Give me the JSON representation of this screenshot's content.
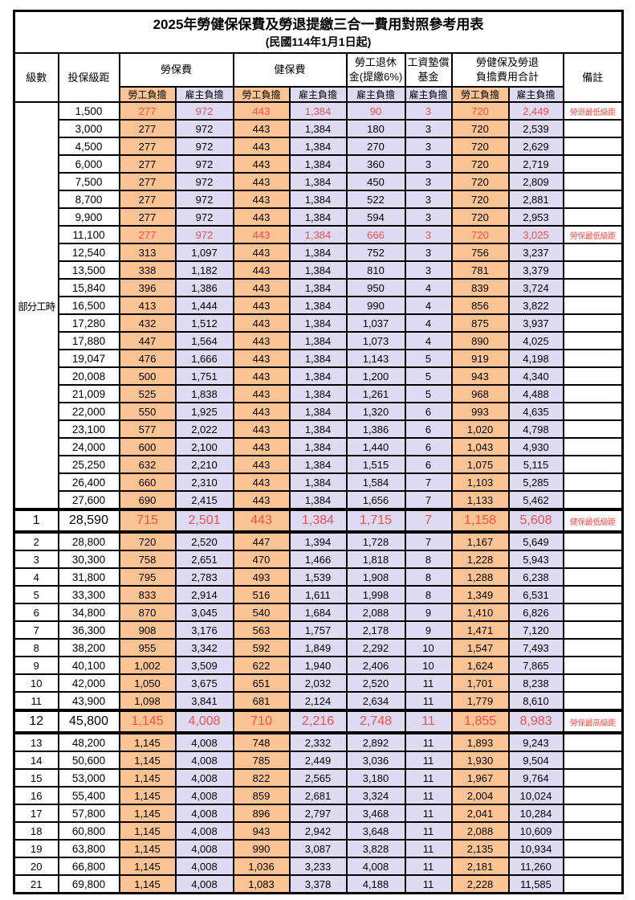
{
  "title": "2025年勞健保保費及勞退提繳三合一費用對照參考用表",
  "subtitle": "(民國114年1月1日起)",
  "columns": {
    "level": "級數",
    "bracket": "投保級距",
    "labor_insurance": "勞保費",
    "health_insurance": "健保費",
    "pension_line1": "勞工退休",
    "pension_line2": "金(提繳6%)",
    "wage_fund_line1": "工資墊償",
    "wage_fund_line2": "基金",
    "total_line1": "勞健保及勞退",
    "total_line2": "負擔費用合計",
    "note": "備註",
    "employee": "勞工負擔",
    "employer": "雇主負擔"
  },
  "colors": {
    "employee_fill": "#FAC394",
    "employer_fill": "#DDDAF2",
    "highlight_text": "#F0504C",
    "border": "#000000"
  },
  "part_time_label": "部分工時",
  "part_time_rowspan": 23,
  "rows": [
    {
      "bracket": "1,500",
      "fees": [
        "277",
        "972",
        "443",
        "1,384",
        "90",
        "3",
        "720",
        "2,449"
      ],
      "note": "勞退最低級距",
      "red": true
    },
    {
      "bracket": "3,000",
      "fees": [
        "277",
        "972",
        "443",
        "1,384",
        "180",
        "3",
        "720",
        "2,539"
      ]
    },
    {
      "bracket": "4,500",
      "fees": [
        "277",
        "972",
        "443",
        "1,384",
        "270",
        "3",
        "720",
        "2,629"
      ]
    },
    {
      "bracket": "6,000",
      "fees": [
        "277",
        "972",
        "443",
        "1,384",
        "360",
        "3",
        "720",
        "2,719"
      ]
    },
    {
      "bracket": "7,500",
      "fees": [
        "277",
        "972",
        "443",
        "1,384",
        "450",
        "3",
        "720",
        "2,809"
      ]
    },
    {
      "bracket": "8,700",
      "fees": [
        "277",
        "972",
        "443",
        "1,384",
        "522",
        "3",
        "720",
        "2,881"
      ]
    },
    {
      "bracket": "9,900",
      "fees": [
        "277",
        "972",
        "443",
        "1,384",
        "594",
        "3",
        "720",
        "2,953"
      ]
    },
    {
      "bracket": "11,100",
      "fees": [
        "277",
        "972",
        "443",
        "1,384",
        "666",
        "3",
        "720",
        "3,025"
      ],
      "note": "勞保最低級距",
      "red": true
    },
    {
      "bracket": "12,540",
      "fees": [
        "313",
        "1,097",
        "443",
        "1,384",
        "752",
        "3",
        "756",
        "3,237"
      ]
    },
    {
      "bracket": "13,500",
      "fees": [
        "338",
        "1,182",
        "443",
        "1,384",
        "810",
        "3",
        "781",
        "3,379"
      ]
    },
    {
      "bracket": "15,840",
      "fees": [
        "396",
        "1,386",
        "443",
        "1,384",
        "950",
        "4",
        "839",
        "3,724"
      ]
    },
    {
      "bracket": "16,500",
      "fees": [
        "413",
        "1,444",
        "443",
        "1,384",
        "990",
        "4",
        "856",
        "3,822"
      ]
    },
    {
      "bracket": "17,280",
      "fees": [
        "432",
        "1,512",
        "443",
        "1,384",
        "1,037",
        "4",
        "875",
        "3,937"
      ]
    },
    {
      "bracket": "17,880",
      "fees": [
        "447",
        "1,564",
        "443",
        "1,384",
        "1,073",
        "4",
        "890",
        "4,025"
      ]
    },
    {
      "bracket": "19,047",
      "fees": [
        "476",
        "1,666",
        "443",
        "1,384",
        "1,143",
        "5",
        "919",
        "4,198"
      ]
    },
    {
      "bracket": "20,008",
      "fees": [
        "500",
        "1,751",
        "443",
        "1,384",
        "1,200",
        "5",
        "943",
        "4,340"
      ]
    },
    {
      "bracket": "21,009",
      "fees": [
        "525",
        "1,838",
        "443",
        "1,384",
        "1,261",
        "5",
        "968",
        "4,488"
      ]
    },
    {
      "bracket": "22,000",
      "fees": [
        "550",
        "1,925",
        "443",
        "1,384",
        "1,320",
        "6",
        "993",
        "4,635"
      ]
    },
    {
      "bracket": "23,100",
      "fees": [
        "577",
        "2,022",
        "443",
        "1,384",
        "1,386",
        "6",
        "1,020",
        "4,798"
      ]
    },
    {
      "bracket": "24,000",
      "fees": [
        "600",
        "2,100",
        "443",
        "1,384",
        "1,440",
        "6",
        "1,043",
        "4,930"
      ]
    },
    {
      "bracket": "25,250",
      "fees": [
        "632",
        "2,210",
        "443",
        "1,384",
        "1,515",
        "6",
        "1,075",
        "5,115"
      ]
    },
    {
      "bracket": "26,400",
      "fees": [
        "660",
        "2,310",
        "443",
        "1,384",
        "1,584",
        "7",
        "1,103",
        "5,285"
      ]
    },
    {
      "bracket": "27,600",
      "fees": [
        "690",
        "2,415",
        "443",
        "1,384",
        "1,656",
        "7",
        "1,133",
        "5,462"
      ]
    },
    {
      "level": "1",
      "bracket": "28,590",
      "fees": [
        "715",
        "2,501",
        "443",
        "1,384",
        "1,715",
        "7",
        "1,158",
        "5,608"
      ],
      "note": "健保最低級距",
      "red": true,
      "large": true
    },
    {
      "level": "2",
      "bracket": "28,800",
      "fees": [
        "720",
        "2,520",
        "447",
        "1,394",
        "1,728",
        "7",
        "1,167",
        "5,649"
      ]
    },
    {
      "level": "3",
      "bracket": "30,300",
      "fees": [
        "758",
        "2,651",
        "470",
        "1,466",
        "1,818",
        "8",
        "1,228",
        "5,943"
      ]
    },
    {
      "level": "4",
      "bracket": "31,800",
      "fees": [
        "795",
        "2,783",
        "493",
        "1,539",
        "1,908",
        "8",
        "1,288",
        "6,238"
      ]
    },
    {
      "level": "5",
      "bracket": "33,300",
      "fees": [
        "833",
        "2,914",
        "516",
        "1,611",
        "1,998",
        "8",
        "1,349",
        "6,531"
      ]
    },
    {
      "level": "6",
      "bracket": "34,800",
      "fees": [
        "870",
        "3,045",
        "540",
        "1,684",
        "2,088",
        "9",
        "1,410",
        "6,826"
      ]
    },
    {
      "level": "7",
      "bracket": "36,300",
      "fees": [
        "908",
        "3,176",
        "563",
        "1,757",
        "2,178",
        "9",
        "1,471",
        "7,120"
      ]
    },
    {
      "level": "8",
      "bracket": "38,200",
      "fees": [
        "955",
        "3,342",
        "592",
        "1,849",
        "2,292",
        "10",
        "1,547",
        "7,493"
      ]
    },
    {
      "level": "9",
      "bracket": "40,100",
      "fees": [
        "1,002",
        "3,509",
        "622",
        "1,940",
        "2,406",
        "10",
        "1,624",
        "7,865"
      ]
    },
    {
      "level": "10",
      "bracket": "42,000",
      "fees": [
        "1,050",
        "3,675",
        "651",
        "2,032",
        "2,520",
        "11",
        "1,701",
        "8,238"
      ]
    },
    {
      "level": "11",
      "bracket": "43,900",
      "fees": [
        "1,098",
        "3,841",
        "681",
        "2,124",
        "2,634",
        "11",
        "1,779",
        "8,610"
      ]
    },
    {
      "level": "12",
      "bracket": "45,800",
      "fees": [
        "1,145",
        "4,008",
        "710",
        "2,216",
        "2,748",
        "11",
        "1,855",
        "8,983"
      ],
      "note": "勞保最高級距",
      "red": true,
      "large": true
    },
    {
      "level": "13",
      "bracket": "48,200",
      "fees": [
        "1,145",
        "4,008",
        "748",
        "2,332",
        "2,892",
        "11",
        "1,893",
        "9,243"
      ]
    },
    {
      "level": "14",
      "bracket": "50,600",
      "fees": [
        "1,145",
        "4,008",
        "785",
        "2,449",
        "3,036",
        "11",
        "1,930",
        "9,504"
      ]
    },
    {
      "level": "15",
      "bracket": "53,000",
      "fees": [
        "1,145",
        "4,008",
        "822",
        "2,565",
        "3,180",
        "11",
        "1,967",
        "9,764"
      ]
    },
    {
      "level": "16",
      "bracket": "55,400",
      "fees": [
        "1,145",
        "4,008",
        "859",
        "2,681",
        "3,324",
        "11",
        "2,004",
        "10,024"
      ]
    },
    {
      "level": "17",
      "bracket": "57,800",
      "fees": [
        "1,145",
        "4,008",
        "896",
        "2,797",
        "3,468",
        "11",
        "2,041",
        "10,284"
      ]
    },
    {
      "level": "18",
      "bracket": "60,800",
      "fees": [
        "1,145",
        "4,008",
        "943",
        "2,942",
        "3,648",
        "11",
        "2,088",
        "10,609"
      ]
    },
    {
      "level": "19",
      "bracket": "63,800",
      "fees": [
        "1,145",
        "4,008",
        "990",
        "3,087",
        "3,828",
        "11",
        "2,135",
        "10,934"
      ]
    },
    {
      "level": "20",
      "bracket": "66,800",
      "fees": [
        "1,145",
        "4,008",
        "1,036",
        "3,233",
        "4,008",
        "11",
        "2,181",
        "11,260"
      ]
    },
    {
      "level": "21",
      "bracket": "69,800",
      "fees": [
        "1,145",
        "4,008",
        "1,083",
        "3,378",
        "4,188",
        "11",
        "2,228",
        "11,585"
      ]
    }
  ]
}
